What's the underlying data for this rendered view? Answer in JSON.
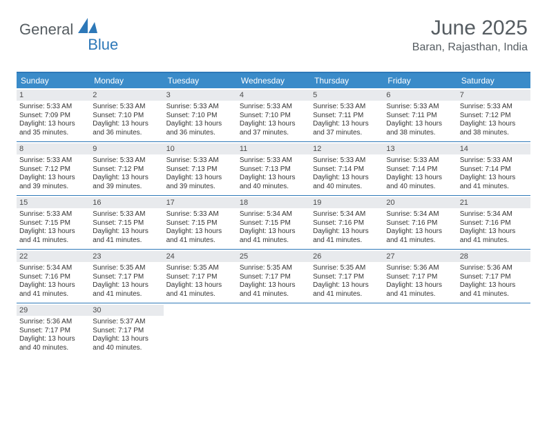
{
  "logo": {
    "text_general": "General",
    "text_blue": "Blue"
  },
  "header": {
    "title": "June 2025",
    "location": "Baran, Rajasthan, India"
  },
  "colors": {
    "header_bg": "#3a8bc9",
    "border": "#2d78b8",
    "daynum_bg": "#e8eaed",
    "text": "#333333",
    "logo_gray": "#555c61",
    "logo_blue": "#2d78b8"
  },
  "fonts": {
    "title_size": 30,
    "location_size": 16,
    "dayhead_size": 12,
    "daynum_size": 11,
    "cell_size": 10
  },
  "day_names": [
    "Sunday",
    "Monday",
    "Tuesday",
    "Wednesday",
    "Thursday",
    "Friday",
    "Saturday"
  ],
  "days": [
    {
      "n": 1,
      "sunrise": "5:33 AM",
      "sunset": "7:09 PM",
      "daylight": "13 hours and 35 minutes."
    },
    {
      "n": 2,
      "sunrise": "5:33 AM",
      "sunset": "7:10 PM",
      "daylight": "13 hours and 36 minutes."
    },
    {
      "n": 3,
      "sunrise": "5:33 AM",
      "sunset": "7:10 PM",
      "daylight": "13 hours and 36 minutes."
    },
    {
      "n": 4,
      "sunrise": "5:33 AM",
      "sunset": "7:10 PM",
      "daylight": "13 hours and 37 minutes."
    },
    {
      "n": 5,
      "sunrise": "5:33 AM",
      "sunset": "7:11 PM",
      "daylight": "13 hours and 37 minutes."
    },
    {
      "n": 6,
      "sunrise": "5:33 AM",
      "sunset": "7:11 PM",
      "daylight": "13 hours and 38 minutes."
    },
    {
      "n": 7,
      "sunrise": "5:33 AM",
      "sunset": "7:12 PM",
      "daylight": "13 hours and 38 minutes."
    },
    {
      "n": 8,
      "sunrise": "5:33 AM",
      "sunset": "7:12 PM",
      "daylight": "13 hours and 39 minutes."
    },
    {
      "n": 9,
      "sunrise": "5:33 AM",
      "sunset": "7:12 PM",
      "daylight": "13 hours and 39 minutes."
    },
    {
      "n": 10,
      "sunrise": "5:33 AM",
      "sunset": "7:13 PM",
      "daylight": "13 hours and 39 minutes."
    },
    {
      "n": 11,
      "sunrise": "5:33 AM",
      "sunset": "7:13 PM",
      "daylight": "13 hours and 40 minutes."
    },
    {
      "n": 12,
      "sunrise": "5:33 AM",
      "sunset": "7:14 PM",
      "daylight": "13 hours and 40 minutes."
    },
    {
      "n": 13,
      "sunrise": "5:33 AM",
      "sunset": "7:14 PM",
      "daylight": "13 hours and 40 minutes."
    },
    {
      "n": 14,
      "sunrise": "5:33 AM",
      "sunset": "7:14 PM",
      "daylight": "13 hours and 41 minutes."
    },
    {
      "n": 15,
      "sunrise": "5:33 AM",
      "sunset": "7:15 PM",
      "daylight": "13 hours and 41 minutes."
    },
    {
      "n": 16,
      "sunrise": "5:33 AM",
      "sunset": "7:15 PM",
      "daylight": "13 hours and 41 minutes."
    },
    {
      "n": 17,
      "sunrise": "5:33 AM",
      "sunset": "7:15 PM",
      "daylight": "13 hours and 41 minutes."
    },
    {
      "n": 18,
      "sunrise": "5:34 AM",
      "sunset": "7:15 PM",
      "daylight": "13 hours and 41 minutes."
    },
    {
      "n": 19,
      "sunrise": "5:34 AM",
      "sunset": "7:16 PM",
      "daylight": "13 hours and 41 minutes."
    },
    {
      "n": 20,
      "sunrise": "5:34 AM",
      "sunset": "7:16 PM",
      "daylight": "13 hours and 41 minutes."
    },
    {
      "n": 21,
      "sunrise": "5:34 AM",
      "sunset": "7:16 PM",
      "daylight": "13 hours and 41 minutes."
    },
    {
      "n": 22,
      "sunrise": "5:34 AM",
      "sunset": "7:16 PM",
      "daylight": "13 hours and 41 minutes."
    },
    {
      "n": 23,
      "sunrise": "5:35 AM",
      "sunset": "7:17 PM",
      "daylight": "13 hours and 41 minutes."
    },
    {
      "n": 24,
      "sunrise": "5:35 AM",
      "sunset": "7:17 PM",
      "daylight": "13 hours and 41 minutes."
    },
    {
      "n": 25,
      "sunrise": "5:35 AM",
      "sunset": "7:17 PM",
      "daylight": "13 hours and 41 minutes."
    },
    {
      "n": 26,
      "sunrise": "5:35 AM",
      "sunset": "7:17 PM",
      "daylight": "13 hours and 41 minutes."
    },
    {
      "n": 27,
      "sunrise": "5:36 AM",
      "sunset": "7:17 PM",
      "daylight": "13 hours and 41 minutes."
    },
    {
      "n": 28,
      "sunrise": "5:36 AM",
      "sunset": "7:17 PM",
      "daylight": "13 hours and 41 minutes."
    },
    {
      "n": 29,
      "sunrise": "5:36 AM",
      "sunset": "7:17 PM",
      "daylight": "13 hours and 40 minutes."
    },
    {
      "n": 30,
      "sunrise": "5:37 AM",
      "sunset": "7:17 PM",
      "daylight": "13 hours and 40 minutes."
    }
  ],
  "labels": {
    "sunrise": "Sunrise: ",
    "sunset": "Sunset: ",
    "daylight": "Daylight: "
  },
  "grid": {
    "first_weekday": 0,
    "total_days": 30,
    "columns": 7
  }
}
